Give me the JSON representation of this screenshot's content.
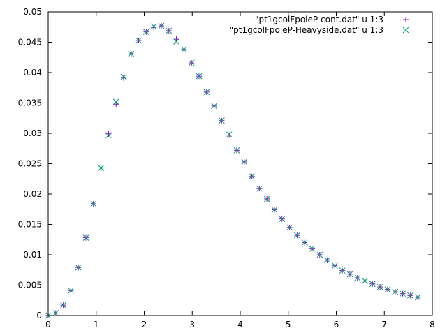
{
  "chart_data": {
    "type": "scatter",
    "title": "",
    "xlabel": "",
    "ylabel": "",
    "xlim": [
      0,
      8
    ],
    "ylim": [
      0,
      0.05
    ],
    "grid": false,
    "legend_position": "top-right",
    "x_ticks": [
      "0",
      "1",
      "2",
      "3",
      "4",
      "5",
      "6",
      "7",
      "8"
    ],
    "y_ticks": [
      "0",
      "0.005",
      "0.01",
      "0.015",
      "0.02",
      "0.025",
      "0.03",
      "0.035",
      "0.04",
      "0.045",
      "0.05"
    ],
    "series": [
      {
        "name": "\"pt1gcolFpoleP-cont.dat\" u 1:3",
        "marker": "plus",
        "color": "#9400d3",
        "x": [
          0,
          0.157,
          0.314,
          0.471,
          0.628,
          0.785,
          0.942,
          1.1,
          1.257,
          1.414,
          1.571,
          1.728,
          1.885,
          2.042,
          2.199,
          2.356,
          2.513,
          2.67,
          2.827,
          2.985,
          3.142,
          3.299,
          3.456,
          3.613,
          3.77,
          3.927,
          4.084,
          4.241,
          4.398,
          4.555,
          4.712,
          4.869,
          5.027,
          5.184,
          5.341,
          5.498,
          5.655,
          5.812,
          5.969,
          6.126,
          6.283,
          6.44,
          6.597,
          6.754,
          6.912,
          7.069,
          7.226,
          7.383,
          7.54,
          7.697
        ],
        "y": [
          0,
          0.0004,
          0.0017,
          0.0041,
          0.0079,
          0.0128,
          0.0184,
          0.0243,
          0.0299,
          0.0348,
          0.0391,
          0.0431,
          0.0453,
          0.0467,
          0.0474,
          0.0477,
          0.0469,
          0.0455,
          0.0438,
          0.0416,
          0.0394,
          0.0368,
          0.0345,
          0.0321,
          0.0297,
          0.0272,
          0.0253,
          0.0229,
          0.0209,
          0.0192,
          0.0174,
          0.0159,
          0.0145,
          0.0132,
          0.012,
          0.011,
          0.01,
          0.0091,
          0.0082,
          0.0074,
          0.0068,
          0.0062,
          0.0057,
          0.0052,
          0.0047,
          0.0043,
          0.0039,
          0.0036,
          0.0033,
          0.003
        ]
      },
      {
        "name": "\"pt1gcolFpoleP-Heavyside.dat\" u 1:3",
        "marker": "cross",
        "color": "#009e73",
        "x": [
          0,
          0.157,
          0.314,
          0.471,
          0.628,
          0.785,
          0.942,
          1.1,
          1.257,
          1.414,
          1.571,
          1.728,
          1.885,
          2.042,
          2.199,
          2.356,
          2.513,
          2.67,
          2.827,
          2.985,
          3.142,
          3.299,
          3.456,
          3.613,
          3.77,
          3.927,
          4.084,
          4.241,
          4.398,
          4.555,
          4.712,
          4.869,
          5.027,
          5.184,
          5.341,
          5.498,
          5.655,
          5.812,
          5.969,
          6.126,
          6.283,
          6.44,
          6.597,
          6.754,
          6.912,
          7.069,
          7.226,
          7.383,
          7.54,
          7.697
        ],
        "y": [
          0,
          0.0004,
          0.0017,
          0.0041,
          0.0079,
          0.0128,
          0.0184,
          0.0243,
          0.0297,
          0.0352,
          0.0393,
          0.0431,
          0.0453,
          0.0467,
          0.0476,
          0.0477,
          0.0469,
          0.0451,
          0.0438,
          0.0416,
          0.0394,
          0.0368,
          0.0345,
          0.0321,
          0.0298,
          0.0272,
          0.0253,
          0.0229,
          0.0209,
          0.0192,
          0.0174,
          0.0159,
          0.0145,
          0.0132,
          0.012,
          0.011,
          0.01,
          0.0091,
          0.0082,
          0.0074,
          0.0068,
          0.0062,
          0.0057,
          0.0052,
          0.0047,
          0.0043,
          0.0039,
          0.0036,
          0.0033,
          0.003
        ]
      }
    ]
  }
}
